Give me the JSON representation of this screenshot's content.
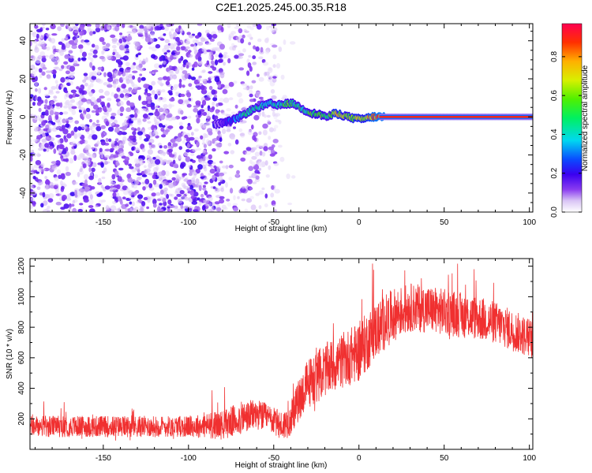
{
  "title": "C2E1.2025.245.00.35.R18",
  "chart_data": [
    {
      "type": "heatmap",
      "name": "spectrogram",
      "xlabel": "Height of straight line (km)",
      "ylabel": "Frequency (Hz)",
      "xlim": [
        -193,
        102
      ],
      "ylim": [
        -50,
        49
      ],
      "xticks": [
        -150,
        -100,
        -50,
        0,
        50,
        100
      ],
      "yticks": [
        -40,
        -20,
        0,
        20,
        40
      ],
      "xtick_labels": [
        "-150",
        "-100",
        "-50",
        "0",
        "50",
        "100"
      ],
      "ytick_labels": [
        "-40",
        "-20",
        "0",
        "20",
        "40"
      ],
      "colorbar": {
        "label": "Normalized spectral amplitude",
        "range": [
          0,
          0.97
        ],
        "ticks": [
          0.0,
          0.2,
          0.4,
          0.6,
          0.8
        ],
        "tick_labels": [
          "0.0",
          "0.2",
          "0.4",
          "0.6",
          "0.8"
        ]
      },
      "noise_region": {
        "x_start": -193,
        "x_end": -48,
        "fade_end": -38,
        "dense_end": -80
      },
      "ridge": {
        "description_points": [
          {
            "x": -85,
            "y": -4,
            "amp": 0.15
          },
          {
            "x": -78,
            "y": -3,
            "amp": 0.2
          },
          {
            "x": -72,
            "y": -1,
            "amp": 0.3
          },
          {
            "x": -68,
            "y": 1,
            "amp": 0.4
          },
          {
            "x": -62,
            "y": 4,
            "amp": 0.45
          },
          {
            "x": -56,
            "y": 6,
            "amp": 0.42
          },
          {
            "x": -52,
            "y": 7,
            "amp": 0.4
          },
          {
            "x": -48,
            "y": 6,
            "amp": 0.45
          },
          {
            "x": -42,
            "y": 7,
            "amp": 0.55
          },
          {
            "x": -38,
            "y": 7,
            "amp": 0.5
          },
          {
            "x": -33,
            "y": 4,
            "amp": 0.45
          },
          {
            "x": -28,
            "y": 2,
            "amp": 0.55
          },
          {
            "x": -22,
            "y": 1,
            "amp": 0.6
          },
          {
            "x": -18,
            "y": 0,
            "amp": 0.45
          },
          {
            "x": -14,
            "y": 2,
            "amp": 0.75
          },
          {
            "x": -10,
            "y": 1,
            "amp": 0.65
          },
          {
            "x": -6,
            "y": 0,
            "amp": 0.6
          },
          {
            "x": -2,
            "y": -1,
            "amp": 0.7
          },
          {
            "x": 3,
            "y": -1,
            "amp": 0.65
          },
          {
            "x": 8,
            "y": 0,
            "amp": 0.85
          },
          {
            "x": 12,
            "y": 0,
            "amp": 0.9
          },
          {
            "x": 102,
            "y": 0,
            "amp": 0.95
          }
        ]
      }
    },
    {
      "type": "line",
      "name": "snr",
      "xlabel": "Height of straight line (km)",
      "ylabel": "SNR (10 * v/v)",
      "xlim": [
        -193,
        102
      ],
      "ylim": [
        0,
        1250
      ],
      "xticks": [
        -150,
        -100,
        -50,
        0,
        50,
        100
      ],
      "yticks": [
        200,
        400,
        600,
        800,
        1000,
        1200
      ],
      "xtick_labels": [
        "-150",
        "-100",
        "-50",
        "0",
        "50",
        "100"
      ],
      "ytick_labels": [
        "200",
        "400",
        "600",
        "800",
        "1000",
        "1200"
      ],
      "color": "#f03030",
      "trend": {
        "x": [
          -193,
          -150,
          -100,
          -80,
          -70,
          -60,
          -52,
          -45,
          -40,
          -35,
          -30,
          -20,
          -10,
          0,
          10,
          20,
          30,
          40,
          50,
          60,
          70,
          80,
          90,
          102
        ],
        "y": [
          150,
          150,
          150,
          160,
          200,
          230,
          200,
          150,
          200,
          330,
          430,
          520,
          580,
          640,
          780,
          880,
          930,
          920,
          900,
          880,
          860,
          830,
          780,
          720
        ]
      },
      "noise_amplitude": {
        "x": [
          -193,
          -100,
          -70,
          -50,
          -40,
          -30,
          -10,
          0,
          30,
          60,
          102
        ],
        "y": [
          70,
          70,
          110,
          90,
          110,
          170,
          180,
          200,
          160,
          150,
          130
        ]
      }
    }
  ]
}
